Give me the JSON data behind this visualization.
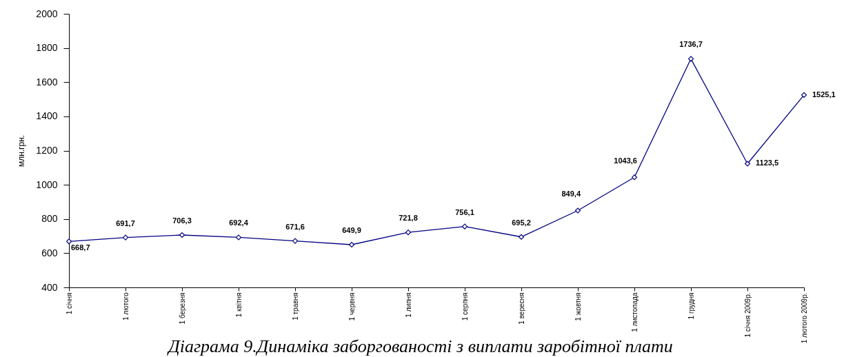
{
  "chart_data": {
    "type": "line",
    "title": "Діаграма 9.Динаміка заборгованості з виплати заробітної плати",
    "ylabel": "млн.грн.",
    "categories": [
      "1 січня",
      "1 лютого",
      "1 березня",
      "1 квітня",
      "1 травня",
      "1 червня",
      "1 липня",
      "1 серпня",
      "1 вересня",
      "1 жовтня",
      "1 листопада",
      "1 грудня",
      "1 січня 2009р.",
      "1 лютого 2009р."
    ],
    "values": [
      668.7,
      691.7,
      706.3,
      692.4,
      671.6,
      649.9,
      721.8,
      756.1,
      695.2,
      849.4,
      1043.6,
      1736.7,
      1123.5,
      1525.1
    ],
    "value_labels": [
      "668,7",
      "691,7",
      "706,3",
      "692,4",
      "671,6",
      "649,9",
      "721,8",
      "756,1",
      "695,2",
      "849,4",
      "1043,6",
      "1736,7",
      "1123,5",
      "1525,1"
    ],
    "color": "#000080",
    "ylim": [
      400,
      2000
    ],
    "yticks": [
      400,
      600,
      800,
      1000,
      1200,
      1400,
      1600,
      1800,
      2000
    ],
    "grid": false,
    "marker": "diamond",
    "line_style": "solid"
  }
}
